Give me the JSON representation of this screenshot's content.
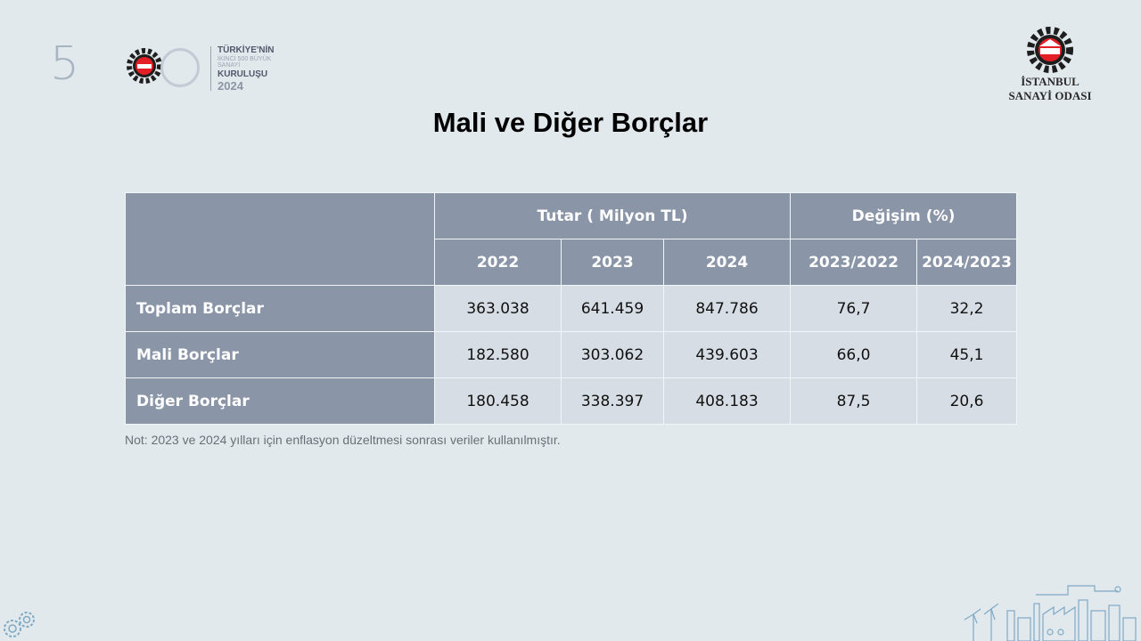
{
  "logo500": {
    "number": "5",
    "line1": "TÜRKİYE'NİN",
    "line2": "İKİNCİ 500 BÜYÜK SANAYİ",
    "line3": "KURULUŞU",
    "year": "2024"
  },
  "iso_logo": {
    "name_line1": "İSTANBUL",
    "name_line2": "SANAYİ ODASI"
  },
  "title": "Mali ve Diğer Borçlar",
  "table": {
    "group_header_amount": "Tutar ( Milyon TL)",
    "group_header_change": "Değişim (%)",
    "columns": [
      "2022",
      "2023",
      "2024",
      "2023/2022",
      "2024/2023"
    ],
    "rows": [
      {
        "label": "Toplam Borçlar",
        "values": [
          "363.038",
          "641.459",
          "847.786",
          "76,7",
          "32,2"
        ]
      },
      {
        "label": "Mali Borçlar",
        "values": [
          "182.580",
          "303.062",
          "439.603",
          "66,0",
          "45,1"
        ]
      },
      {
        "label": "Diğer Borçlar",
        "values": [
          "180.458",
          "338.397",
          "408.183",
          "87,5",
          "20,6"
        ]
      }
    ]
  },
  "note": "Not: 2023 ve 2024 yılları için enflasyon düzeltmesi sonrası veriler kullanılmıştır.",
  "colors": {
    "background": "#e2e9ed",
    "header_fill": "#8a96a8",
    "cell_fill": "#d6dde4",
    "iso_red": "#e31e24"
  }
}
